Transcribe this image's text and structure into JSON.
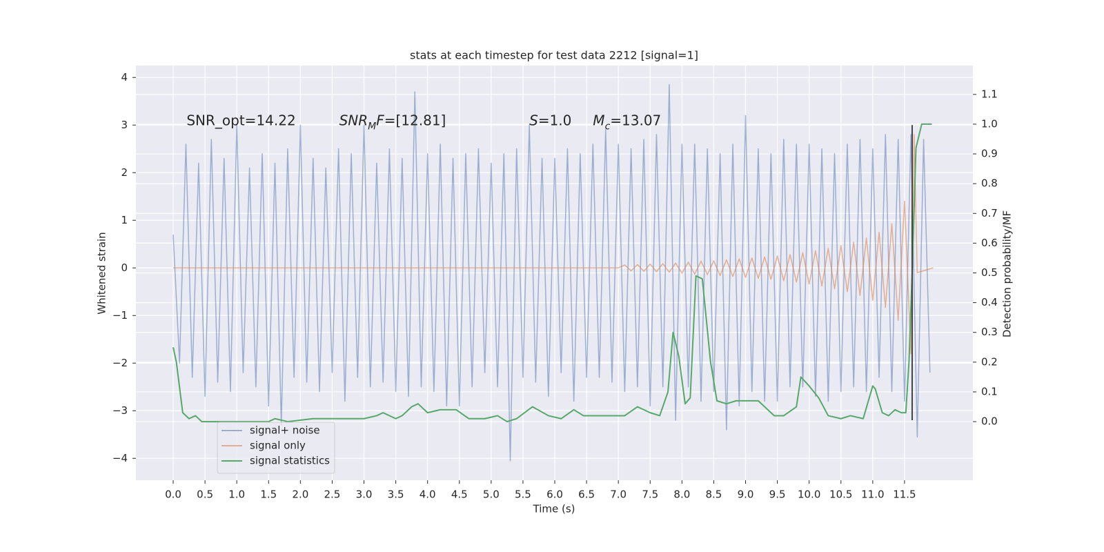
{
  "chart_data": {
    "type": "line",
    "title": "stats at each timestep for test data 2212 [signal=1]",
    "x_label": "Time (s)",
    "y_label": "Whitened strain",
    "y2_label": "Detection probability/MF",
    "xlim": [
      -0.586,
      12.575
    ],
    "ylim": [
      -4.46,
      4.25
    ],
    "y2lim": [
      -0.197,
      1.197
    ],
    "grid": true,
    "legend_loc": "lower left",
    "xticks": [
      {
        "value": 0,
        "label": "0.0"
      },
      {
        "value": 0.5,
        "label": "0.5"
      },
      {
        "value": 1,
        "label": "1.0"
      },
      {
        "value": 1.5,
        "label": "1.5"
      },
      {
        "value": 2,
        "label": "2.0"
      },
      {
        "value": 2.5,
        "label": "2.5"
      },
      {
        "value": 3,
        "label": "3.0"
      },
      {
        "value": 3.5,
        "label": "3.5"
      },
      {
        "value": 4,
        "label": "4.0"
      },
      {
        "value": 4.5,
        "label": "4.5"
      },
      {
        "value": 5,
        "label": "5.0"
      },
      {
        "value": 5.5,
        "label": "5.5"
      },
      {
        "value": 6,
        "label": "6.0"
      },
      {
        "value": 6.5,
        "label": "6.5"
      },
      {
        "value": 7,
        "label": "7.0"
      },
      {
        "value": 7.5,
        "label": "7.5"
      },
      {
        "value": 8,
        "label": "8.0"
      },
      {
        "value": 8.5,
        "label": "8.5"
      },
      {
        "value": 9,
        "label": "9.0"
      },
      {
        "value": 9.5,
        "label": "9.5"
      },
      {
        "value": 10,
        "label": "10.0"
      },
      {
        "value": 10.5,
        "label": "10.5"
      },
      {
        "value": 11,
        "label": "11.0"
      },
      {
        "value": 11.5,
        "label": "11.5"
      }
    ],
    "yticks": [
      {
        "value": -4,
        "label": "−4"
      },
      {
        "value": -3,
        "label": "−3"
      },
      {
        "value": -2,
        "label": "−2"
      },
      {
        "value": -1,
        "label": "−1"
      },
      0,
      1,
      2,
      3,
      4
    ],
    "y2ticks": [
      {
        "value": 0,
        "label": "0.0"
      },
      {
        "value": 0.1,
        "label": "0.1"
      },
      {
        "value": 0.2,
        "label": "0.2"
      },
      {
        "value": 0.3,
        "label": "0.3"
      },
      {
        "value": 0.4,
        "label": "0.4"
      },
      {
        "value": 0.5,
        "label": "0.5"
      },
      {
        "value": 0.6,
        "label": "0.6"
      },
      {
        "value": 0.7,
        "label": "0.7"
      },
      {
        "value": 0.8,
        "label": "0.8"
      },
      {
        "value": 0.9,
        "label": "0.9"
      },
      {
        "value": 1,
        "label": "1.0"
      },
      {
        "value": 1.1,
        "label": "1.1"
      }
    ],
    "series": [
      {
        "name": "signal+ noise",
        "color": "#4c72b0",
        "alpha": 0.5,
        "axis": "y",
        "x": [
          0.0,
          0.1,
          0.2,
          0.3,
          0.4,
          0.5,
          0.6,
          0.7,
          0.8,
          0.9,
          1.0,
          1.1,
          1.2,
          1.3,
          1.4,
          1.5,
          1.6,
          1.7,
          1.8,
          1.9,
          2.0,
          2.1,
          2.2,
          2.3,
          2.4,
          2.5,
          2.6,
          2.7,
          2.8,
          2.9,
          3.0,
          3.1,
          3.2,
          3.3,
          3.4,
          3.5,
          3.6,
          3.7,
          3.8,
          3.9,
          4.0,
          4.1,
          4.2,
          4.3,
          4.4,
          4.5,
          4.6,
          4.7,
          4.8,
          4.9,
          5.0,
          5.1,
          5.2,
          5.3,
          5.4,
          5.5,
          5.6,
          5.7,
          5.8,
          5.9,
          6.0,
          6.1,
          6.2,
          6.3,
          6.4,
          6.5,
          6.6,
          6.7,
          6.8,
          6.9,
          7.0,
          7.1,
          7.2,
          7.3,
          7.4,
          7.5,
          7.6,
          7.7,
          7.8,
          7.9,
          8.0,
          8.1,
          8.2,
          8.3,
          8.4,
          8.5,
          8.6,
          8.7,
          8.8,
          8.9,
          9.0,
          9.1,
          9.2,
          9.3,
          9.4,
          9.5,
          9.6,
          9.7,
          9.8,
          9.9,
          10.0,
          10.1,
          10.2,
          10.3,
          10.4,
          10.5,
          10.6,
          10.7,
          10.8,
          10.9,
          11.0,
          11.1,
          11.2,
          11.3,
          11.4,
          11.5,
          11.6,
          11.7,
          11.8,
          11.9
        ],
        "values": [
          0.7,
          -2.0,
          2.6,
          -2.3,
          2.2,
          -2.7,
          2.7,
          -2.4,
          2.3,
          -2.6,
          3.0,
          -2.2,
          2.1,
          -2.5,
          2.4,
          -2.9,
          2.2,
          -3.3,
          2.5,
          -2.3,
          3.0,
          -2.4,
          2.3,
          -2.6,
          2.1,
          -2.2,
          2.5,
          -2.8,
          2.4,
          -2.3,
          3.0,
          -2.5,
          2.2,
          -2.4,
          2.5,
          -2.6,
          2.3,
          -2.7,
          3.7,
          -2.5,
          2.4,
          -2.6,
          2.6,
          -2.9,
          2.3,
          -2.9,
          2.4,
          -2.5,
          2.5,
          -2.2,
          2.2,
          -2.5,
          2.4,
          -4.05,
          2.5,
          -2.3,
          3.0,
          -2.4,
          2.3,
          -2.7,
          2.3,
          -2.2,
          2.5,
          -2.8,
          2.4,
          -2.3,
          2.6,
          -2.3,
          2.9,
          -2.4,
          2.6,
          -2.6,
          2.5,
          -2.5,
          2.7,
          -2.9,
          2.8,
          -2.5,
          3.85,
          -3.2,
          2.6,
          -2.5,
          2.6,
          -2.8,
          2.5,
          -2.6,
          2.4,
          -3.4,
          2.6,
          -2.9,
          3.2,
          -2.6,
          2.5,
          -2.8,
          2.4,
          -2.8,
          2.7,
          -2.5,
          2.6,
          -2.5,
          2.6,
          -2.7,
          2.5,
          -2.8,
          2.4,
          -2.6,
          2.6,
          -2.5,
          2.7,
          -2.6,
          2.5,
          -2.3,
          2.8,
          -2.6,
          2.7,
          -2.8,
          2.8,
          -3.55,
          2.7,
          -2.2
        ]
      },
      {
        "name": "signal only",
        "color": "#dd8452",
        "alpha": 0.6,
        "axis": "y",
        "x": [
          0.0,
          7.0,
          7.1,
          7.2,
          7.3,
          7.4,
          7.5,
          7.6,
          7.7,
          7.8,
          7.9,
          8.0,
          8.1,
          8.2,
          8.3,
          8.4,
          8.5,
          8.6,
          8.7,
          8.8,
          8.9,
          9.0,
          9.1,
          9.2,
          9.3,
          9.4,
          9.5,
          9.6,
          9.7,
          9.8,
          9.9,
          10.0,
          10.1,
          10.2,
          10.3,
          10.4,
          10.5,
          10.6,
          10.7,
          10.8,
          10.9,
          11.0,
          11.1,
          11.2,
          11.3,
          11.4,
          11.5,
          11.6,
          11.65,
          11.7,
          11.95
        ],
        "values": [
          0.0,
          0.0,
          0.06,
          -0.06,
          0.07,
          -0.07,
          0.08,
          -0.08,
          0.09,
          -0.09,
          0.1,
          -0.11,
          0.12,
          -0.13,
          0.14,
          -0.14,
          0.15,
          -0.16,
          0.17,
          -0.18,
          0.19,
          -0.2,
          0.21,
          -0.22,
          0.23,
          -0.24,
          0.25,
          -0.27,
          0.28,
          -0.3,
          0.32,
          -0.34,
          0.36,
          -0.38,
          0.41,
          -0.44,
          0.47,
          -0.5,
          0.54,
          -0.58,
          0.63,
          -0.68,
          0.75,
          -0.83,
          0.93,
          -1.1,
          1.4,
          -1.8,
          2.8,
          -0.1,
          0.0
        ]
      },
      {
        "name": "signal statistics",
        "color": "#55a868",
        "alpha": 1,
        "axis": "y2",
        "x": [
          0.0,
          0.05,
          0.15,
          0.25,
          0.35,
          0.45,
          0.55,
          0.7,
          0.9,
          1.2,
          1.5,
          1.6,
          1.8,
          2.2,
          2.6,
          3.0,
          3.2,
          3.3,
          3.5,
          3.6,
          3.75,
          3.85,
          4.0,
          4.2,
          4.45,
          4.65,
          4.9,
          5.1,
          5.25,
          5.4,
          5.65,
          5.9,
          6.1,
          6.3,
          6.45,
          6.7,
          6.9,
          7.1,
          7.3,
          7.5,
          7.65,
          7.78,
          7.86,
          7.95,
          8.05,
          8.13,
          8.22,
          8.32,
          8.45,
          8.55,
          8.7,
          8.85,
          9.0,
          9.2,
          9.45,
          9.6,
          9.8,
          9.87,
          10.0,
          10.15,
          10.3,
          10.5,
          10.65,
          10.85,
          11.0,
          11.04,
          11.15,
          11.25,
          11.35,
          11.45,
          11.52,
          11.57,
          11.62,
          11.68,
          11.77,
          11.93
        ],
        "values": [
          0.25,
          0.2,
          0.03,
          0.01,
          0.02,
          0.0,
          0.0,
          0.0,
          0.0,
          0.0,
          0.0,
          0.01,
          0.0,
          0.01,
          0.01,
          0.01,
          0.02,
          0.03,
          0.01,
          0.02,
          0.05,
          0.06,
          0.03,
          0.04,
          0.04,
          0.01,
          0.01,
          0.02,
          0.0,
          0.01,
          0.05,
          0.02,
          0.01,
          0.04,
          0.02,
          0.02,
          0.02,
          0.02,
          0.05,
          0.03,
          0.02,
          0.1,
          0.3,
          0.22,
          0.06,
          0.08,
          0.49,
          0.48,
          0.2,
          0.07,
          0.06,
          0.07,
          0.07,
          0.07,
          0.02,
          0.02,
          0.05,
          0.15,
          0.12,
          0.08,
          0.02,
          0.01,
          0.02,
          0.01,
          0.12,
          0.11,
          0.03,
          0.02,
          0.04,
          0.03,
          0.03,
          0.2,
          0.5,
          0.92,
          1.0,
          1.0
        ]
      }
    ],
    "vlines": [
      {
        "x": 11.62,
        "ymin": -3.2,
        "ymax": 3.0,
        "color": "#444444"
      }
    ],
    "annotations": [
      {
        "x": 0.21,
        "y": 3.0,
        "parts": [
          {
            "text": "SNR_opt=14.22"
          }
        ]
      },
      {
        "x": 2.61,
        "y": 3.0,
        "parts": [
          {
            "text": "SNR",
            "style": "italic"
          },
          {
            "text": "M",
            "style": "sub"
          },
          {
            "text": "F",
            "style": "italic"
          },
          {
            "text": "=[12.81]"
          }
        ]
      },
      {
        "x": 5.6,
        "y": 3.0,
        "parts": [
          {
            "text": "S",
            "style": "italic"
          },
          {
            "text": "=1.0"
          }
        ]
      },
      {
        "x": 6.6,
        "y": 3.0,
        "parts": [
          {
            "text": "M",
            "style": "italic"
          },
          {
            "text": "c",
            "style": "sub"
          },
          {
            "text": "=13.07"
          }
        ]
      }
    ]
  }
}
